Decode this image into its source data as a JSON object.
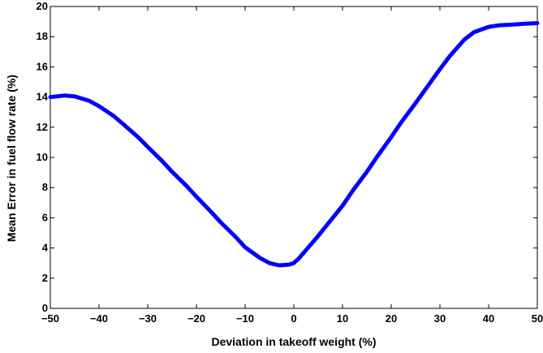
{
  "chart_data": {
    "type": "line",
    "xlabel": "Deviation in takeoff weight (%)",
    "ylabel": "Mean Error in fuel flow rate (%)",
    "xlim": [
      -50,
      50
    ],
    "ylim": [
      0,
      20
    ],
    "xticks": [
      -50,
      -40,
      -30,
      -20,
      -10,
      0,
      10,
      20,
      30,
      40,
      50
    ],
    "yticks": [
      0,
      2,
      4,
      6,
      8,
      10,
      12,
      14,
      16,
      18,
      20
    ],
    "xtick_labels": [
      "−50",
      "−40",
      "−30",
      "−20",
      "−10",
      "0",
      "10",
      "20",
      "30",
      "40",
      "50"
    ],
    "ytick_labels": [
      "0",
      "2",
      "4",
      "6",
      "8",
      "10",
      "12",
      "14",
      "16",
      "18",
      "20"
    ],
    "grid": false,
    "line_color": "#0000ff",
    "series": [
      {
        "x": [
          -50,
          -47,
          -45,
          -42,
          -40,
          -37,
          -35,
          -32,
          -30,
          -27,
          -25,
          -22,
          -20,
          -17,
          -15,
          -12,
          -10,
          -7,
          -5,
          -3,
          -1,
          0,
          1,
          3,
          5,
          7,
          10,
          12,
          15,
          17,
          20,
          22,
          25,
          27,
          30,
          32,
          35,
          37,
          40,
          42,
          45,
          47,
          50
        ],
        "y": [
          14.0,
          14.1,
          14.05,
          13.75,
          13.4,
          12.75,
          12.2,
          11.35,
          10.7,
          9.75,
          9.05,
          8.1,
          7.4,
          6.4,
          5.7,
          4.75,
          4.05,
          3.35,
          3.0,
          2.85,
          2.9,
          3.0,
          3.3,
          4.05,
          4.8,
          5.6,
          6.8,
          7.75,
          9.05,
          10.0,
          11.35,
          12.3,
          13.6,
          14.5,
          15.85,
          16.7,
          17.8,
          18.3,
          18.65,
          18.75,
          18.8,
          18.85,
          18.9
        ]
      }
    ]
  }
}
